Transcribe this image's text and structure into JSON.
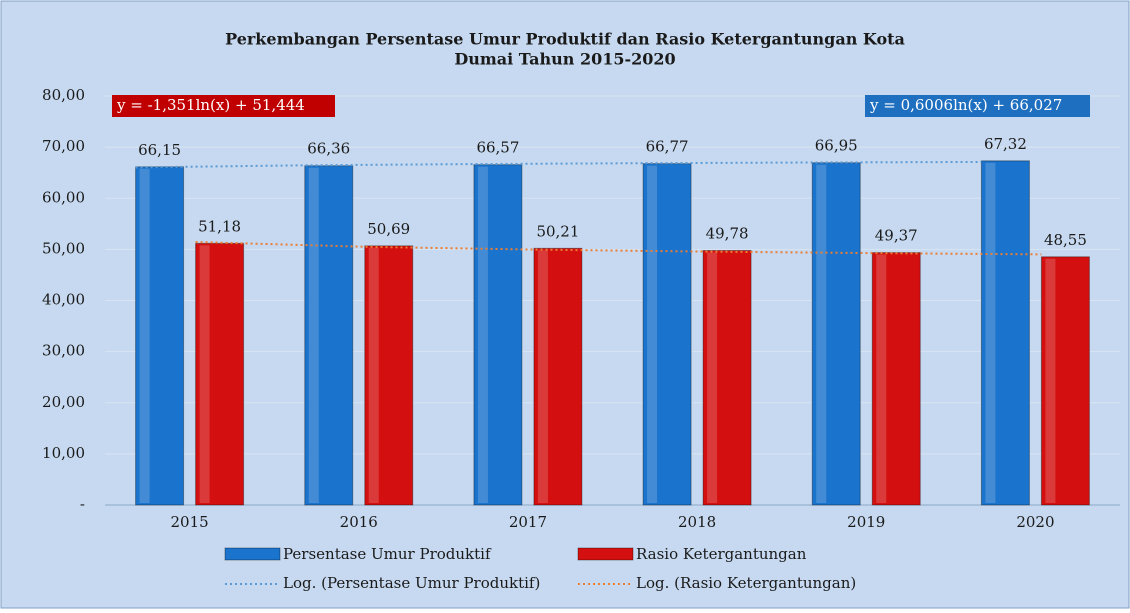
{
  "chart_data": {
    "type": "bar",
    "title": [
      "Perkembangan Persentase Umur Produktif dan Rasio Ketergantungan Kota",
      "Dumai Tahun 2015-2020"
    ],
    "categories": [
      "2015",
      "2016",
      "2017",
      "2018",
      "2019",
      "2020"
    ],
    "series": [
      {
        "name": "Persentase Umur Produktif",
        "color": "#1a73cc",
        "values": [
          66.15,
          66.36,
          66.57,
          66.77,
          66.95,
          67.32
        ],
        "value_labels": [
          "66,15",
          "66,36",
          "66,57",
          "66,77",
          "66,95",
          "67,32"
        ]
      },
      {
        "name": "Rasio Ketergantungan",
        "color": "#d40f0f",
        "values": [
          51.18,
          50.69,
          50.21,
          49.78,
          49.37,
          48.55
        ],
        "value_labels": [
          "51,18",
          "50,69",
          "50,21",
          "49,78",
          "49,37",
          "48,55"
        ]
      }
    ],
    "trendlines": [
      {
        "name": "Log. (Persentase Umur Produktif)",
        "color": "#5b9bd5",
        "equation": "y = 0,6006ln(x) + 66,027",
        "values": [
          66.027,
          66.443,
          66.687,
          66.86,
          66.994,
          67.103
        ]
      },
      {
        "name": "Log. (Rasio Ketergantungan)",
        "color": "#ed7d31",
        "equation": "y = -1,351ln(x) + 51,444",
        "values": [
          51.444,
          50.508,
          49.96,
          49.571,
          49.27,
          49.023
        ]
      }
    ],
    "ylim": [
      0,
      80
    ],
    "yticks": [
      {
        "value": 0,
        "label": "-"
      },
      {
        "value": 10,
        "label": "10,00"
      },
      {
        "value": 20,
        "label": "20,00"
      },
      {
        "value": 30,
        "label": "30,00"
      },
      {
        "value": 40,
        "label": "40,00"
      },
      {
        "value": 50,
        "label": "50,00"
      },
      {
        "value": 60,
        "label": "60,00"
      },
      {
        "value": 70,
        "label": "70,00"
      },
      {
        "value": 80,
        "label": "80,00"
      }
    ],
    "grid": true
  }
}
